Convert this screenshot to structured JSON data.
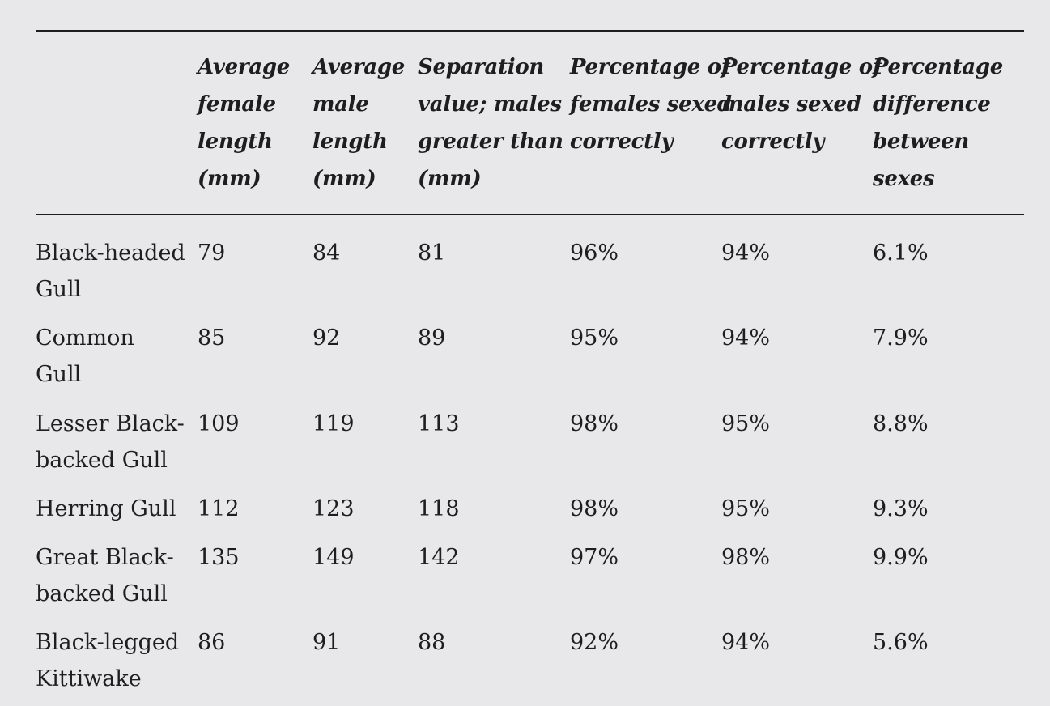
{
  "headers": [
    [
      "Average",
      "female",
      "length",
      "(mm)"
    ],
    [
      "Average",
      "male",
      "length",
      "(mm)"
    ],
    [
      "Separation",
      "value; males",
      "greater than",
      "(mm)"
    ],
    [
      "Percentage of",
      "females sexed",
      "correctly"
    ],
    [
      "Percentage of",
      "males sexed",
      "correctly"
    ],
    [
      "Percentage",
      "difference",
      "between",
      "sexes"
    ]
  ],
  "rows": [
    {
      "name": [
        "Black-headed",
        "Gull"
      ],
      "female": "79",
      "male": "84",
      "separation": "81",
      "females_correct": "96%",
      "males_correct": "94%",
      "difference": "6.1%"
    },
    {
      "name": [
        "Common",
        "Gull"
      ],
      "female": "85",
      "male": "92",
      "separation": "89",
      "females_correct": "95%",
      "males_correct": "94%",
      "difference": "7.9%"
    },
    {
      "name": [
        "Lesser Black-",
        "backed Gull"
      ],
      "female": "109",
      "male": "119",
      "separation": "113",
      "females_correct": "98%",
      "males_correct": "95%",
      "difference": "8.8%"
    },
    {
      "name": [
        "Herring Gull"
      ],
      "female": "112",
      "male": "123",
      "separation": "118",
      "females_correct": "98%",
      "males_correct": "95%",
      "difference": "9.3%"
    },
    {
      "name": [
        "Great Black-",
        "backed Gull"
      ],
      "female": "135",
      "male": "149",
      "separation": "142",
      "females_correct": "97%",
      "males_correct": "98%",
      "difference": "9.9%"
    },
    {
      "name": [
        "Black-legged",
        "Kittiwake"
      ],
      "female": "86",
      "male": "91",
      "separation": "88",
      "females_correct": "92%",
      "males_correct": "94%",
      "difference": "5.6%"
    }
  ]
}
